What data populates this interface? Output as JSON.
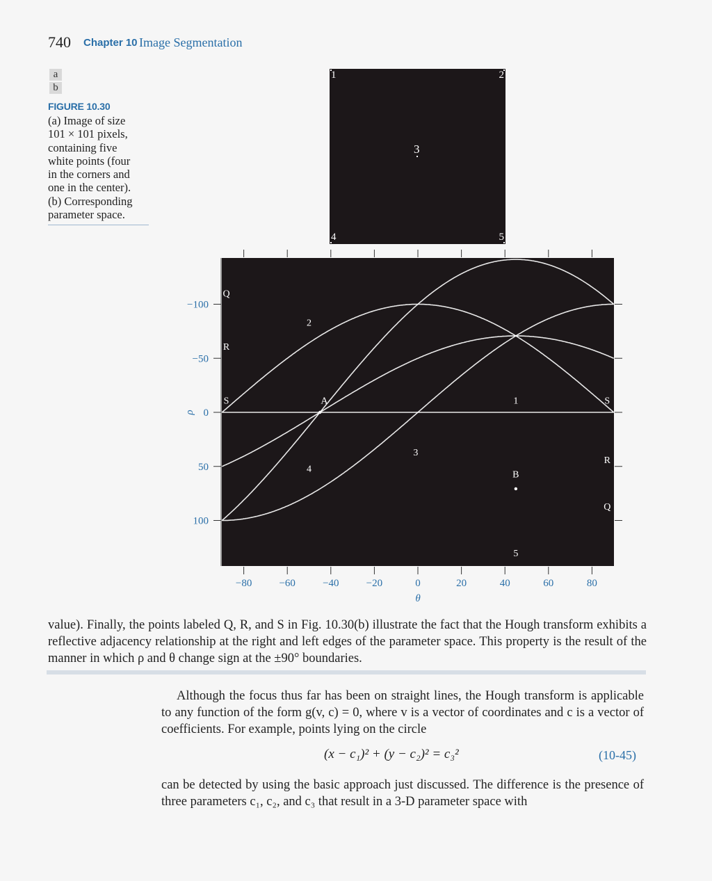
{
  "header": {
    "page_number": "740",
    "chapter": "Chapter 10",
    "chapter_title": "Image Segmentation"
  },
  "figure": {
    "tags": [
      "a",
      "b"
    ],
    "label": "FIGURE 10.30",
    "caption": " (a) Image of size\n101 × 101 pixels,\ncontaining five\nwhite points (four\nin the corners and\none in the center).\n(b) Corresponding\nparameter space.",
    "image_a": {
      "corner_labels": [
        "1",
        "2",
        "3",
        "4",
        "5"
      ]
    }
  },
  "chart_data": {
    "type": "line",
    "title": "",
    "xlabel": "θ",
    "ylabel": "ρ",
    "xlim": [
      -90,
      90
    ],
    "ylim": [
      -142,
      142
    ],
    "y_inverted": true,
    "x_ticks": [
      -80,
      -60,
      -40,
      -20,
      0,
      20,
      40,
      60,
      80
    ],
    "y_ticks": [
      -100,
      -50,
      0,
      50,
      100
    ],
    "background": "#1c1719",
    "line_color": "#ffffff",
    "series": [
      {
        "name": "1",
        "formula": "rho = 0 (point at origin)",
        "point": [
          0,
          0
        ]
      },
      {
        "name": "2",
        "formula": "rho = 100 sin(theta)",
        "point": [
          0,
          100
        ]
      },
      {
        "name": "3",
        "formula": "rho = 50 cos(theta) + 50 sin(theta)",
        "point": [
          50,
          50
        ]
      },
      {
        "name": "4",
        "formula": "rho = 100 cos(theta)",
        "point": [
          100,
          0
        ]
      },
      {
        "name": "5",
        "formula": "rho = 100 cos(theta) + 100 sin(theta)",
        "point": [
          100,
          100
        ]
      }
    ],
    "annotations": [
      {
        "text": "Q",
        "x": -88,
        "y": -107
      },
      {
        "text": "R",
        "x": -88,
        "y": -58
      },
      {
        "text": "S",
        "x": -88,
        "y": -8
      },
      {
        "text": "A",
        "x": -43,
        "y": -8
      },
      {
        "text": "1",
        "x": 45,
        "y": -8
      },
      {
        "text": "S",
        "x": 87,
        "y": -8
      },
      {
        "text": "2",
        "x": -50,
        "y": -80
      },
      {
        "text": "3",
        "x": -1,
        "y": 40
      },
      {
        "text": "4",
        "x": -50,
        "y": 55
      },
      {
        "text": "R",
        "x": 87,
        "y": 47
      },
      {
        "text": "B",
        "x": 45,
        "y": 60
      },
      {
        "text": "Q",
        "x": 87,
        "y": 90
      },
      {
        "text": "5",
        "x": 45,
        "y": 133
      }
    ]
  },
  "text": {
    "para1": "value). Finally, the points labeled Q, R, and S in Fig. 10.30(b) illustrate the fact that the Hough transform exhibits a reflective adjacency relationship at the right and left edges of the parameter space. This property is the result of the manner in which ρ and θ change sign at the ±90° boundaries.",
    "para2": "Although the focus thus far has been on straight lines, the Hough transform is applicable to any function of the form g(v, c) = 0, where v is a vector of coordinates and c is a vector of coefficients. For example, points lying on the circle",
    "equation": "(x − c₁)² + (y − c₂)² = c₃²",
    "equation_number": "(10-45)",
    "para3": "can be detected by using the basic approach just discussed. The difference is the presence of three parameters c₁, c₂, and c₃ that result in a 3-D parameter space with"
  }
}
